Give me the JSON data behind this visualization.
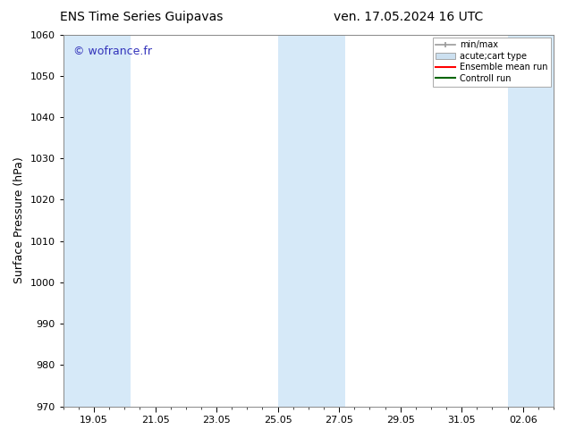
{
  "title_left": "ENS Time Series Guipavas",
  "title_right": "ven. 17.05.2024 16 UTC",
  "ylabel": "Surface Pressure (hPa)",
  "ylim": [
    970,
    1060
  ],
  "yticks": [
    970,
    980,
    990,
    1000,
    1010,
    1020,
    1030,
    1040,
    1050,
    1060
  ],
  "xtick_labels": [
    "19.05",
    "21.05",
    "23.05",
    "25.05",
    "27.05",
    "29.05",
    "31.05",
    "02.06"
  ],
  "xtick_positions": [
    1,
    3,
    5,
    7,
    9,
    11,
    13,
    15
  ],
  "xlim": [
    0,
    16
  ],
  "watermark": "© wofrance.fr",
  "watermark_color": "#3333bb",
  "plot_bg": "#ffffff",
  "shaded_color": "#d6e9f8",
  "shaded_regions": [
    {
      "xstart": 0.0,
      "xend": 2.2
    },
    {
      "xstart": 7.0,
      "xend": 9.2
    },
    {
      "xstart": 14.5,
      "xend": 16.0
    }
  ],
  "legend_entries": [
    {
      "label": "min/max",
      "type": "errorbar",
      "color": "#999999"
    },
    {
      "label": "acute;cart type",
      "type": "bar",
      "color": "#cce0f0"
    },
    {
      "label": "Ensemble mean run",
      "type": "line",
      "color": "#ff0000"
    },
    {
      "label": "Controll run",
      "type": "line",
      "color": "#006400"
    }
  ],
  "figsize": [
    6.34,
    4.9
  ],
  "dpi": 100,
  "title_fontsize": 10,
  "ylabel_fontsize": 9,
  "tick_fontsize": 8,
  "legend_fontsize": 7
}
